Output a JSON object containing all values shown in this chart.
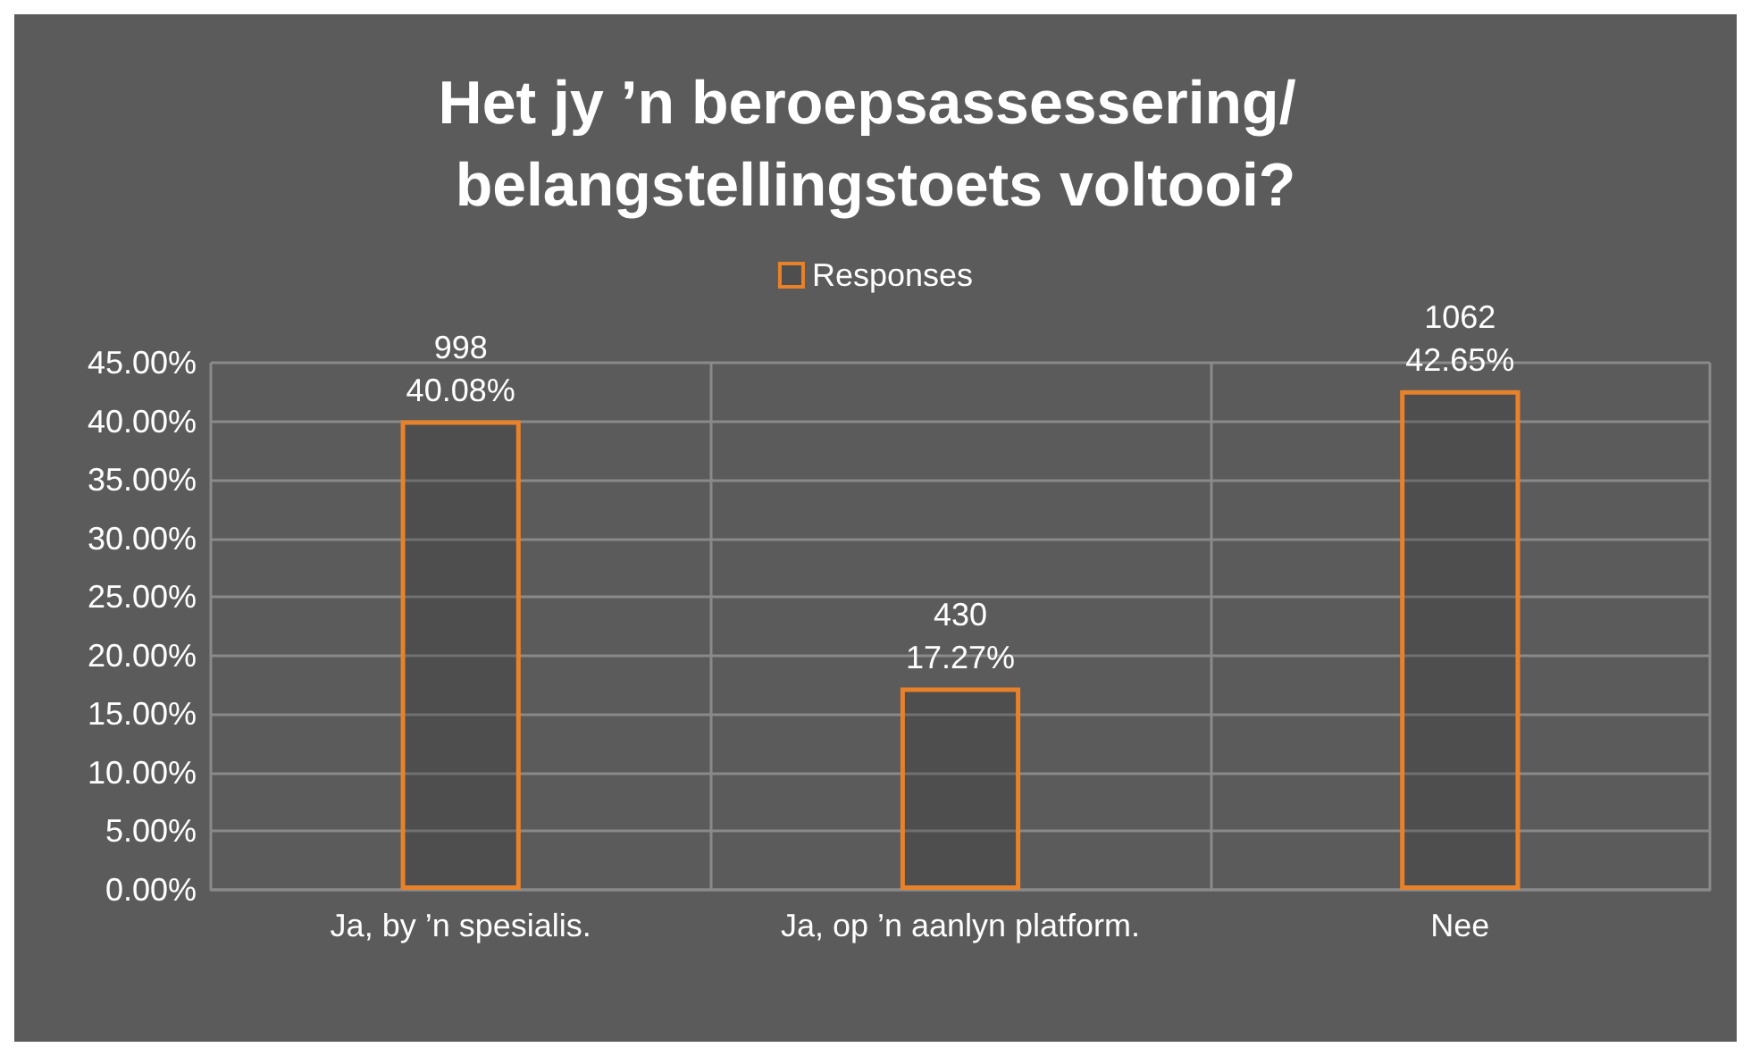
{
  "chart_data": {
    "type": "bar",
    "title": "Het jy ’n beroepsassessering/ belangstellingstoets voltooi?",
    "categories": [
      "Ja, by ’n spesialis.",
      "Ja, op ’n aanlyn platform.",
      "Nee"
    ],
    "series": [
      {
        "name": "Responses",
        "color": "#e8822a",
        "values": [
          40.08,
          17.27,
          42.65
        ],
        "value_labels": [
          "998\n40.08%",
          "430\n17.27%",
          "1062\n42.65%"
        ]
      }
    ],
    "ylim": [
      0,
      45
    ],
    "yticks": [
      {
        "value": 0,
        "label": "0.00%"
      },
      {
        "value": 5,
        "label": "5.00%"
      },
      {
        "value": 10,
        "label": "10.00%"
      },
      {
        "value": 15,
        "label": "15.00%"
      },
      {
        "value": 20,
        "label": "20.00%"
      },
      {
        "value": 25,
        "label": "25.00%"
      },
      {
        "value": 30,
        "label": "30.00%"
      },
      {
        "value": 35,
        "label": "35.00%"
      },
      {
        "value": 40,
        "label": "40.00%"
      },
      {
        "value": 45,
        "label": "45.00%"
      }
    ],
    "grid": true,
    "legend": "top"
  }
}
